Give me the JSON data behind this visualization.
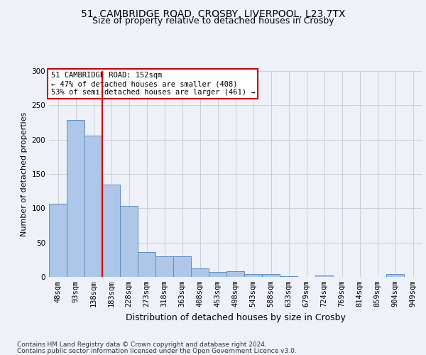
{
  "title1": "51, CAMBRIDGE ROAD, CROSBY, LIVERPOOL, L23 7TX",
  "title2": "Size of property relative to detached houses in Crosby",
  "xlabel": "Distribution of detached houses by size in Crosby",
  "ylabel": "Number of detached properties",
  "bin_labels": [
    "48sqm",
    "93sqm",
    "138sqm",
    "183sqm",
    "228sqm",
    "273sqm",
    "318sqm",
    "363sqm",
    "408sqm",
    "453sqm",
    "498sqm",
    "543sqm",
    "588sqm",
    "633sqm",
    "679sqm",
    "724sqm",
    "769sqm",
    "814sqm",
    "859sqm",
    "904sqm",
    "949sqm"
  ],
  "bar_values": [
    107,
    229,
    206,
    134,
    103,
    36,
    30,
    30,
    12,
    7,
    8,
    4,
    4,
    1,
    0,
    2,
    0,
    0,
    0,
    4,
    0
  ],
  "bar_color": "#aec6e8",
  "bar_edge_color": "#5a8fc2",
  "vline_color": "#cc0000",
  "vline_pos": 2.5,
  "annotation_text": "51 CAMBRIDGE ROAD: 152sqm\n← 47% of detached houses are smaller (408)\n53% of semi-detached houses are larger (461) →",
  "annotation_box_color": "#ffffff",
  "annotation_box_edge": "#cc0000",
  "footer1": "Contains HM Land Registry data © Crown copyright and database right 2024.",
  "footer2": "Contains public sector information licensed under the Open Government Licence v3.0.",
  "bg_color": "#eef2f8",
  "plot_bg_color": "#eef2f8",
  "ylim": [
    0,
    300
  ],
  "yticks": [
    0,
    50,
    100,
    150,
    200,
    250,
    300
  ],
  "title1_fontsize": 10,
  "title2_fontsize": 9,
  "ylabel_fontsize": 8,
  "xlabel_fontsize": 9,
  "tick_fontsize": 7.5,
  "footer_fontsize": 6.5
}
